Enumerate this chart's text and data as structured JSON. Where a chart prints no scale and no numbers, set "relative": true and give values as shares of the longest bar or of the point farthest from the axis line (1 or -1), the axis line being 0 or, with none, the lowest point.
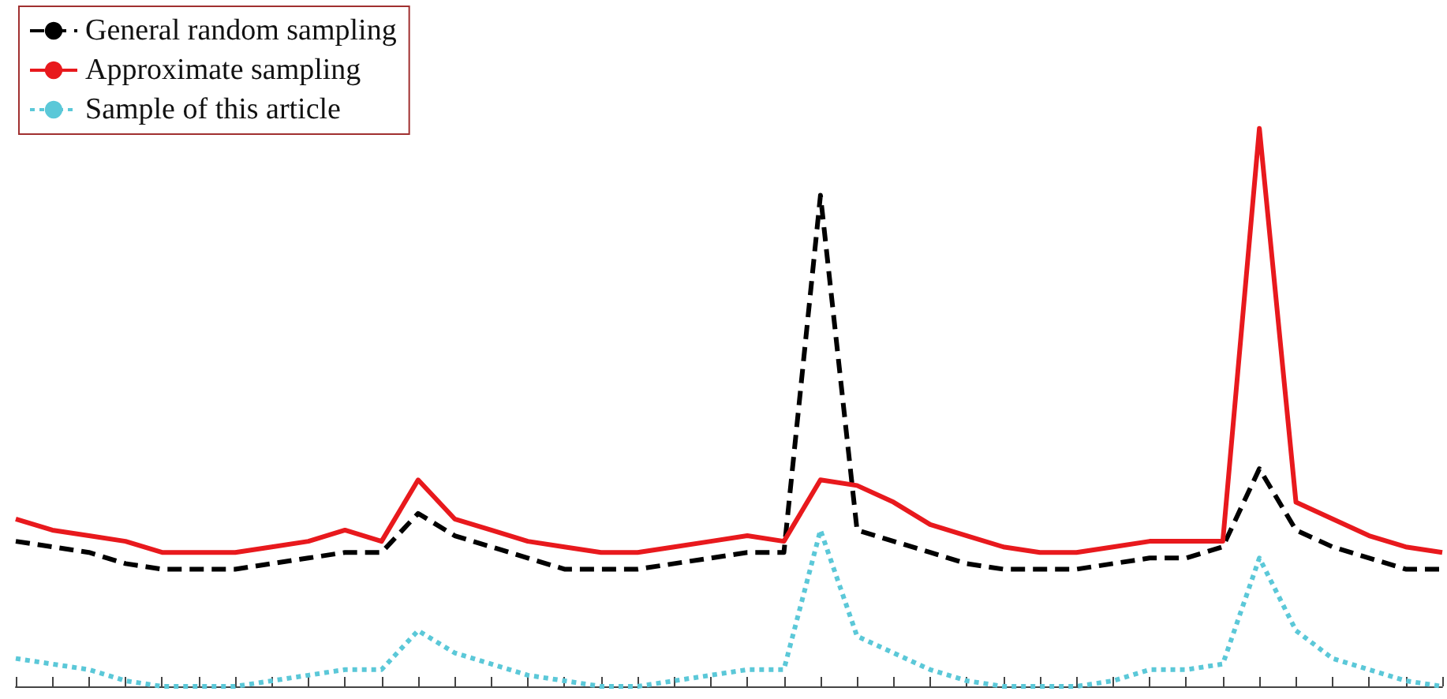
{
  "chart_data": {
    "type": "line",
    "relative": true,
    "legend": "top left",
    "marker": "none",
    "grid": false,
    "categories": [
      null,
      null,
      null,
      null,
      null,
      null,
      null,
      null,
      null,
      null,
      null,
      null,
      null,
      null,
      null,
      null,
      null,
      null,
      null,
      null,
      null,
      null,
      null,
      null,
      null,
      null,
      null,
      null,
      null,
      null,
      null,
      null,
      null,
      null,
      null,
      null,
      null,
      null,
      null,
      null
    ],
    "series": [
      {
        "name": "General random sampling",
        "color": "#000000",
        "line_style": "dashed",
        "values": [
          0.26,
          0.25,
          0.24,
          0.22,
          0.21,
          0.21,
          0.21,
          0.22,
          0.23,
          0.24,
          0.24,
          0.31,
          0.27,
          0.25,
          0.23,
          0.21,
          0.21,
          0.21,
          0.22,
          0.23,
          0.24,
          0.24,
          0.88,
          0.28,
          0.26,
          0.24,
          0.22,
          0.21,
          0.21,
          0.21,
          0.22,
          0.23,
          0.23,
          0.25,
          0.39,
          0.28,
          0.25,
          0.23,
          0.21,
          0.21
        ]
      },
      {
        "name": "Approximate sampling",
        "color": "#e8191d",
        "line_style": "solid",
        "values": [
          0.3,
          0.28,
          0.27,
          0.26,
          0.24,
          0.24,
          0.24,
          0.25,
          0.26,
          0.28,
          0.26,
          0.37,
          0.3,
          0.28,
          0.26,
          0.25,
          0.24,
          0.24,
          0.25,
          0.26,
          0.27,
          0.26,
          0.37,
          0.36,
          0.33,
          0.29,
          0.27,
          0.25,
          0.24,
          0.24,
          0.25,
          0.26,
          0.26,
          0.26,
          1,
          0.33,
          0.3,
          0.27,
          0.25,
          0.24
        ]
      },
      {
        "name": "Sample of this article",
        "color": "#5bc8d8",
        "line_style": "dotted",
        "values": [
          0.05,
          0.04,
          0.03,
          0.01,
          0,
          0,
          0,
          0.01,
          0.02,
          0.03,
          0.03,
          0.1,
          0.06,
          0.04,
          0.02,
          0.01,
          0,
          0,
          0.01,
          0.02,
          0.03,
          0.03,
          0.28,
          0.09,
          0.06,
          0.03,
          0.01,
          0,
          0,
          0,
          0.01,
          0.03,
          0.03,
          0.04,
          0.23,
          0.1,
          0.05,
          0.03,
          0.01,
          0
        ]
      }
    ]
  }
}
